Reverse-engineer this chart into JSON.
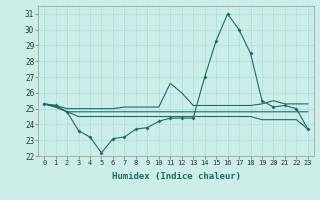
{
  "xlabel": "Humidex (Indice chaleur)",
  "background_color": "#cceee8",
  "grid_color": "#aadddd",
  "line_color": "#1a6b6b",
  "x": [
    0,
    1,
    2,
    3,
    4,
    5,
    6,
    7,
    8,
    9,
    10,
    11,
    12,
    13,
    14,
    15,
    16,
    17,
    18,
    19,
    20,
    21,
    22,
    23
  ],
  "line_main": [
    25.3,
    25.2,
    24.8,
    23.6,
    23.2,
    22.2,
    23.1,
    23.2,
    23.7,
    23.8,
    24.2,
    24.4,
    24.4,
    24.4,
    27.0,
    29.3,
    31.0,
    30.0,
    28.5,
    25.5,
    25.1,
    25.2,
    25.0,
    23.7
  ],
  "line_upper": [
    25.3,
    25.2,
    25.0,
    25.0,
    25.0,
    25.0,
    25.0,
    25.1,
    25.1,
    25.1,
    25.1,
    26.6,
    26.0,
    25.2,
    25.2,
    25.2,
    25.2,
    25.2,
    25.2,
    25.3,
    25.5,
    25.3,
    25.3,
    25.3
  ],
  "line_mid": [
    25.3,
    25.1,
    24.8,
    24.8,
    24.8,
    24.8,
    24.8,
    24.8,
    24.8,
    24.8,
    24.8,
    24.8,
    24.8,
    24.8,
    24.8,
    24.8,
    24.8,
    24.8,
    24.8,
    24.8,
    24.8,
    24.8,
    24.8,
    24.8
  ],
  "line_lower": [
    25.3,
    25.1,
    24.8,
    24.5,
    24.5,
    24.5,
    24.5,
    24.5,
    24.5,
    24.5,
    24.5,
    24.5,
    24.5,
    24.5,
    24.5,
    24.5,
    24.5,
    24.5,
    24.5,
    24.3,
    24.3,
    24.3,
    24.3,
    23.7
  ],
  "ylim": [
    22,
    31.5
  ],
  "yticks": [
    22,
    23,
    24,
    25,
    26,
    27,
    28,
    29,
    30,
    31
  ],
  "xticks": [
    0,
    1,
    2,
    3,
    4,
    5,
    6,
    7,
    8,
    9,
    10,
    11,
    12,
    13,
    14,
    15,
    16,
    17,
    18,
    19,
    20,
    21,
    22,
    23
  ]
}
